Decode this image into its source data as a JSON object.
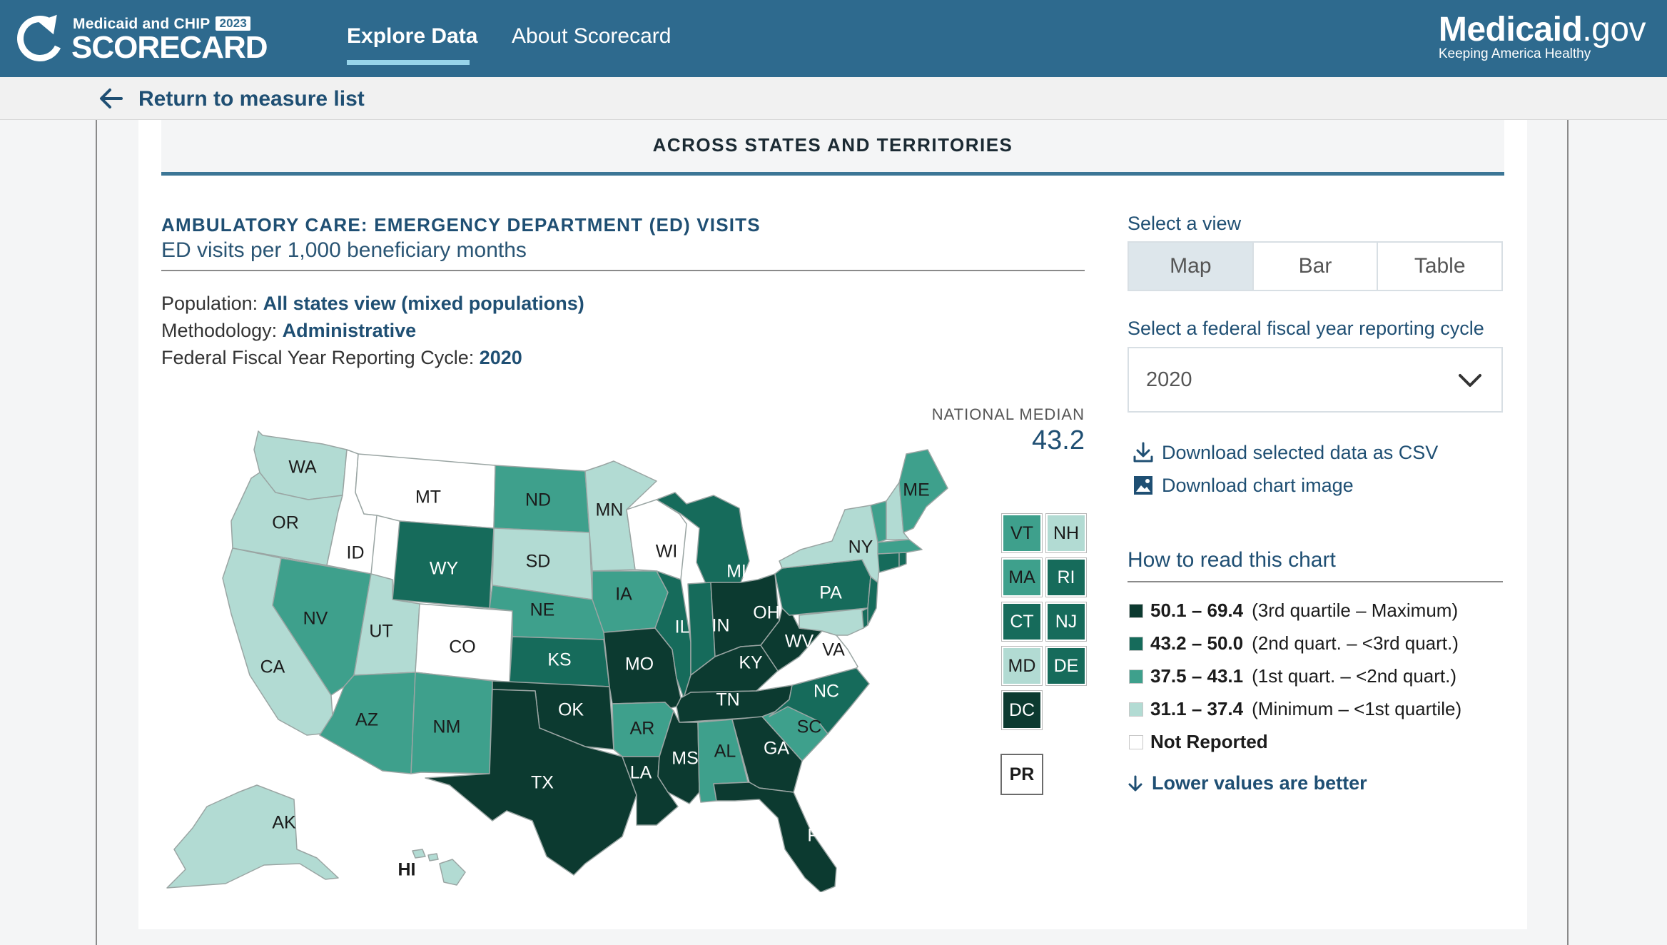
{
  "header": {
    "logo_small": "Medicaid and CHIP",
    "logo_year": "2023",
    "logo_big": "SCORECARD",
    "nav": [
      {
        "label": "Explore Data",
        "active": true
      },
      {
        "label": "About Scorecard",
        "active": false
      }
    ],
    "brand_main": "Medicaid",
    "brand_suffix": ".gov",
    "brand_tagline": "Keeping America Healthy"
  },
  "return_link": "Return to measure list",
  "section_title": "ACROSS STATES AND TERRITORIES",
  "measure": {
    "title": "AMBULATORY CARE: EMERGENCY DEPARTMENT (ED) VISITS",
    "subtitle": "ED visits per 1,000 beneficiary months",
    "population_label": "Population:",
    "population_value": "All states view (mixed populations)",
    "methodology_label": "Methodology:",
    "methodology_value": "Administrative",
    "cycle_label": "Federal Fiscal Year Reporting Cycle:",
    "cycle_value": "2020"
  },
  "national_median": {
    "label": "NATIONAL MEDIAN",
    "value": "43.2"
  },
  "view_selector": {
    "label": "Select a view",
    "options": [
      "Map",
      "Bar",
      "Table"
    ],
    "selected": "Map"
  },
  "year_selector": {
    "label": "Select a federal fiscal year reporting cycle",
    "value": "2020"
  },
  "downloads": {
    "csv": "Download selected data as CSV",
    "image": "Download chart image"
  },
  "legend": {
    "title": "How to read this chart",
    "items": [
      {
        "range": "50.1 – 69.4",
        "desc": "(3rd quartile – Maximum)",
        "color": "#0c3a30"
      },
      {
        "range": "43.2 – 50.0",
        "desc": "(2nd quart. – <3rd quart.)",
        "color": "#166b5b"
      },
      {
        "range": "37.5 – 43.1",
        "desc": "(1st quart. – <2nd quart.)",
        "color": "#3ea08c"
      },
      {
        "range": "31.1 – 37.4",
        "desc": "(Minimum – <1st quartile)",
        "color": "#b2dbd3"
      },
      {
        "range": "Not Reported",
        "desc": "",
        "color": "#ffffff"
      }
    ],
    "lower_better": "Lower values are better"
  },
  "colors": {
    "q4": "#0c3a30",
    "q3": "#166b5b",
    "q2": "#3ea08c",
    "q1": "#b2dbd3",
    "na": "#ffffff",
    "header": "#2e6a8e",
    "link": "#1f4f73"
  },
  "chart_data": {
    "type": "choropleth-map",
    "title": "",
    "categories": [
      "q4",
      "q3",
      "q2",
      "q1",
      "na"
    ],
    "states": {
      "WA": "q1",
      "OR": "q1",
      "CA": "q1",
      "ID": "na",
      "MT": "na",
      "WY": "q3",
      "NV": "q2",
      "UT": "q1",
      "CO": "na",
      "AZ": "q2",
      "NM": "q2",
      "ND": "q2",
      "SD": "q1",
      "NE": "q2",
      "KS": "q3",
      "OK": "q4",
      "TX": "q4",
      "MN": "q1",
      "IA": "q2",
      "MO": "q4",
      "AR": "q2",
      "LA": "q4",
      "WI": "na",
      "IL": "q3",
      "MI": "q3",
      "IN": "q3",
      "OH": "q4",
      "KY": "q4",
      "TN": "q4",
      "MS": "q4",
      "AL": "q2",
      "GA": "q4",
      "FL": "q4",
      "SC": "q2",
      "NC": "q3",
      "VA": "na",
      "WV": "q4",
      "PA": "q3",
      "NY": "q1",
      "ME": "q2",
      "AK": "q1",
      "HI": "q1",
      "VT": "q2",
      "NH": "q1",
      "MA": "q2",
      "RI": "q3",
      "CT": "q3",
      "NJ": "q3",
      "MD": "q1",
      "DE": "q3",
      "DC": "q4",
      "PR": "na"
    }
  }
}
